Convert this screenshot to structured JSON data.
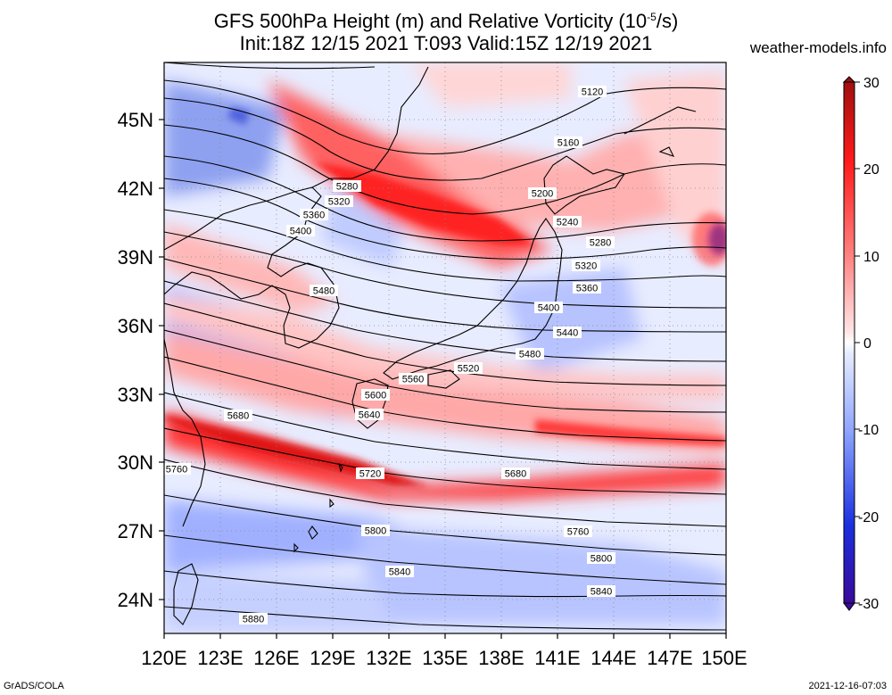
{
  "title": {
    "line1_prefix": "GFS 500hPa Height (m) and Relative Vorticity (10",
    "line1_exp": "-5",
    "line1_suffix": "/s)",
    "line2": "Init:18Z 12/15 2021 T:093 Valid:15Z 12/19 2021"
  },
  "brand": "weather-models.info",
  "footer": {
    "left": "GrADS/COLA",
    "right": "2021-12-16-07:03"
  },
  "map": {
    "lon_ticks": [
      "120E",
      "123E",
      "126E",
      "129E",
      "132E",
      "135E",
      "138E",
      "141E",
      "144E",
      "147E",
      "150E"
    ],
    "lat_ticks": [
      "24N",
      "27N",
      "30N",
      "33N",
      "36N",
      "39N",
      "42N",
      "45N"
    ],
    "lon_range": [
      120,
      150
    ],
    "lat_range": [
      22.5,
      47.5
    ],
    "contour_labels": [
      "5120",
      "5160",
      "5200",
      "5240",
      "5280",
      "5320",
      "5360",
      "5400",
      "5440",
      "5480",
      "5520",
      "5560",
      "5600",
      "5640",
      "5680",
      "5720",
      "5760",
      "5800",
      "5840",
      "5880"
    ]
  },
  "colorbar": {
    "ticks": [
      "30",
      "20",
      "10",
      "0",
      "-10",
      "-20",
      "-30"
    ],
    "range": [
      -30,
      30
    ],
    "colors": {
      "max": "#b01818",
      "high": "#ff2020",
      "mid_pos": "#ffb0b0",
      "zero": "#ffffff",
      "mid_neg": "#a8b8ff",
      "low": "#1030e0",
      "min": "#3a0ca8"
    }
  }
}
